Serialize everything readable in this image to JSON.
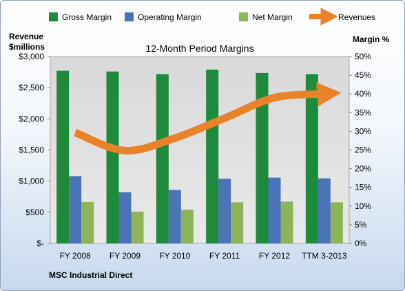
{
  "chart_data": {
    "type": "bar",
    "title": "12-Month Period Margins",
    "ylabel": "Revenue\n$millions",
    "ylabel_right": "Margin %",
    "footer": "MSC Industrial Direct",
    "categories": [
      "FY 2008",
      "FY 2009",
      "FY 2010",
      "FY 2011",
      "FY 2012",
      "TTM 3-2013"
    ],
    "ylim_left": [
      0,
      3000
    ],
    "ylim_right": [
      0,
      50
    ],
    "left_ticks": [
      "$-",
      "$500",
      "$1,000",
      "$1,500",
      "$2,000",
      "$2,500",
      "$3,000"
    ],
    "right_ticks": [
      "0%",
      "5%",
      "10%",
      "15%",
      "20%",
      "25%",
      "30%",
      "35%",
      "40%",
      "45%",
      "50%"
    ],
    "grid": false,
    "legend_position": "top",
    "series": [
      {
        "name": "Gross Margin",
        "axis": "right",
        "type": "bar",
        "color": "#1e8a3c",
        "values": [
          46.2,
          46.0,
          45.3,
          46.5,
          45.6,
          45.3
        ]
      },
      {
        "name": "Operating Margin",
        "axis": "right",
        "type": "bar",
        "color": "#4a73b8",
        "values": [
          18.0,
          13.7,
          14.3,
          17.3,
          17.6,
          17.4
        ]
      },
      {
        "name": "Net Margin",
        "axis": "right",
        "type": "bar",
        "color": "#8db456",
        "values": [
          11.1,
          8.5,
          9.0,
          11.0,
          11.2,
          11.0
        ]
      },
      {
        "name": "Revenues",
        "axis": "left",
        "type": "line",
        "color": "#e8832a",
        "values": [
          1780,
          1490,
          1690,
          2010,
          2340,
          2400
        ]
      }
    ]
  }
}
